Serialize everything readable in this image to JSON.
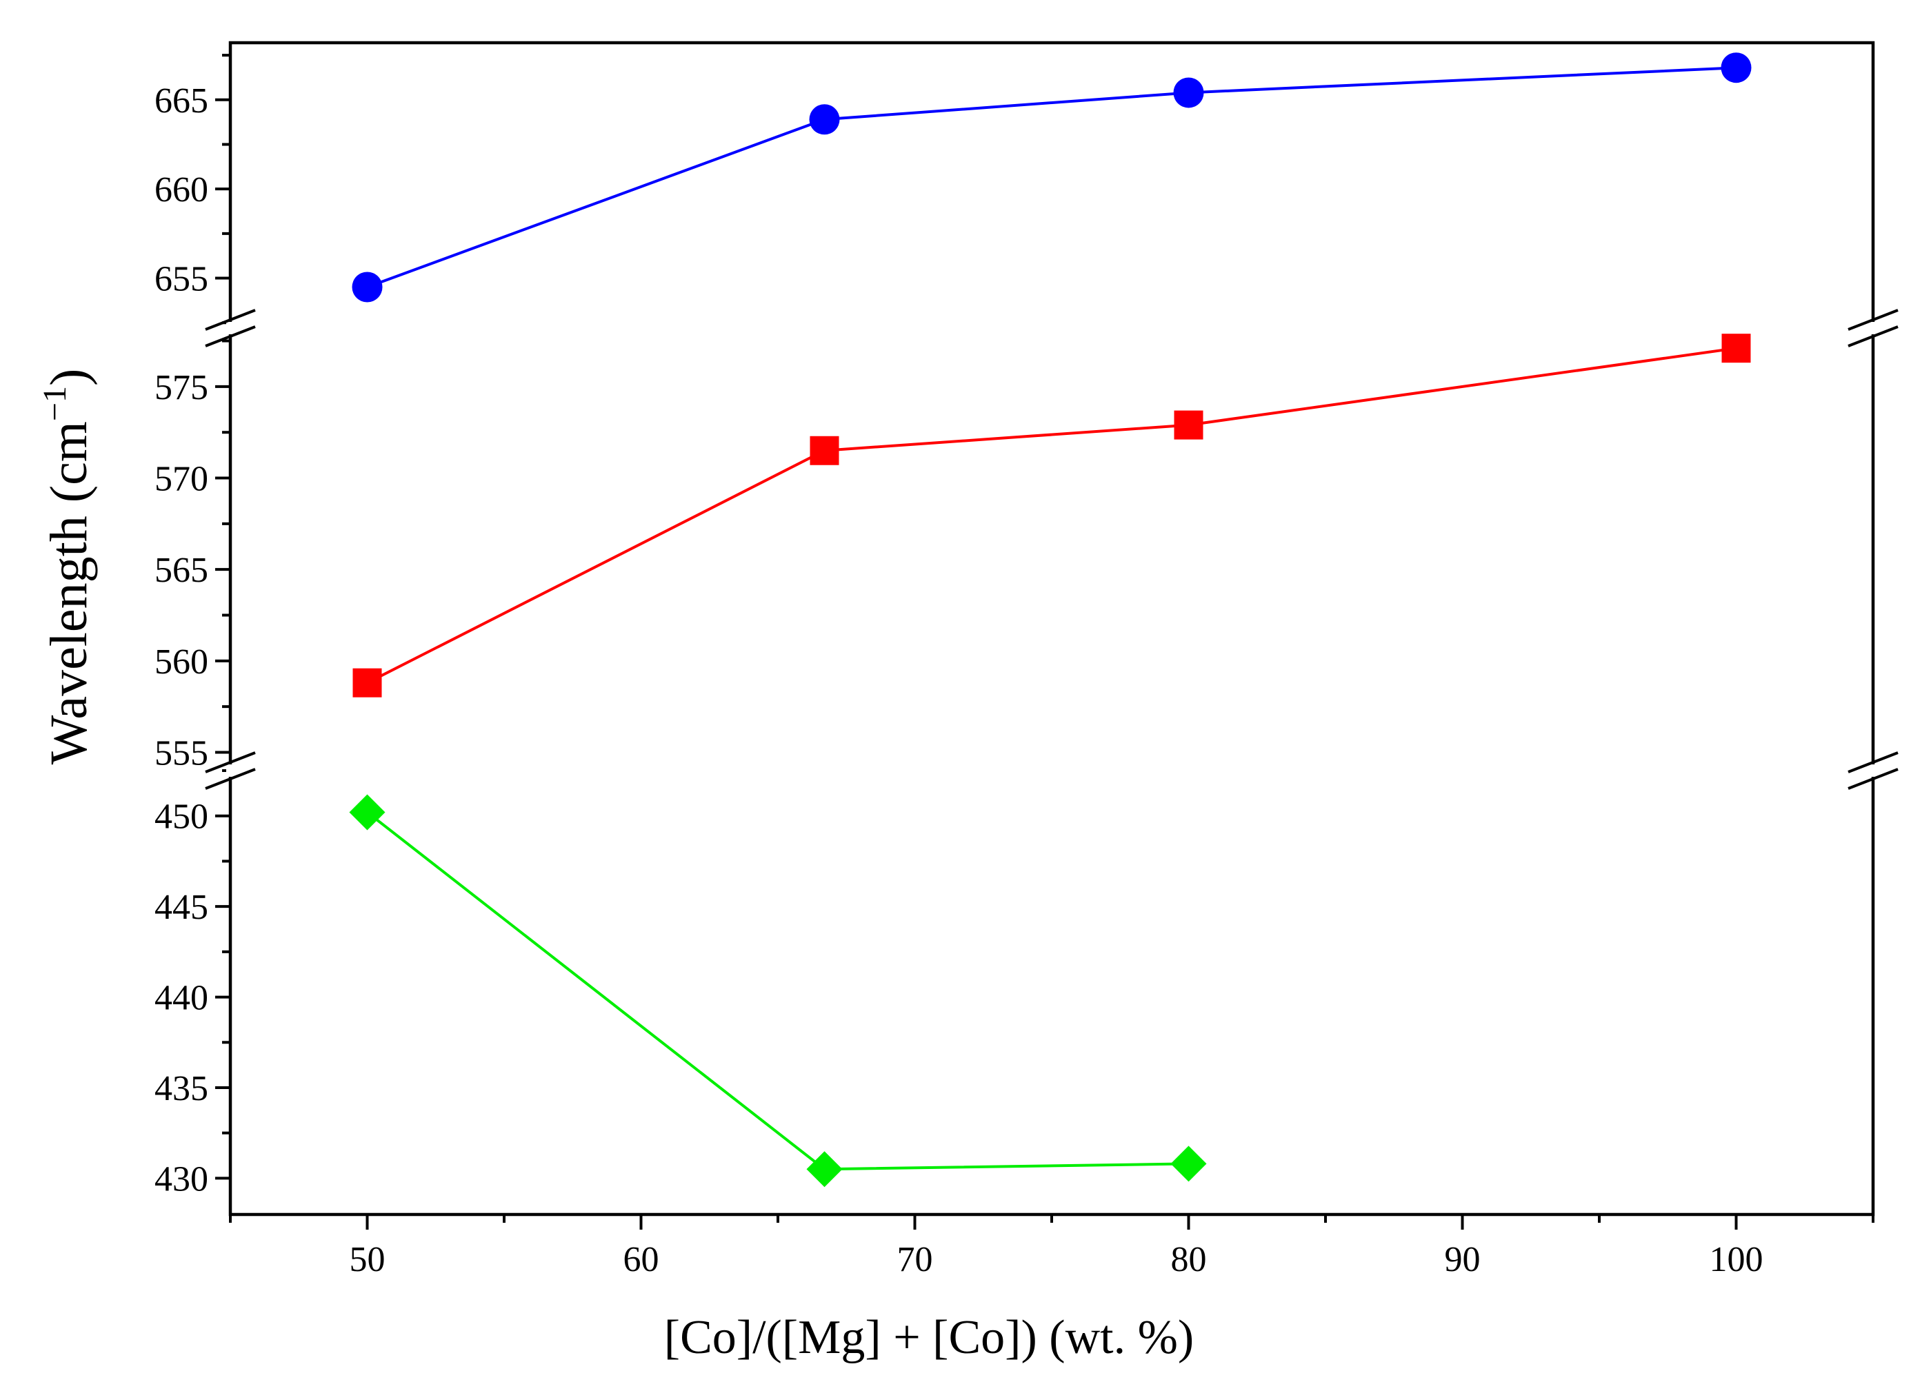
{
  "chart_data": {
    "type": "line",
    "title": "",
    "xlabel": "[Co]/([Mg] + [Co]) (wt. %)",
    "ylabel": "Wavelength (cm",
    "ylabel_superscript": "−1",
    "ylabel_close": ")",
    "xlim": [
      45,
      105
    ],
    "x_ticks": [
      50,
      60,
      70,
      80,
      90,
      100
    ],
    "x_tick_labels": [
      "50",
      "60",
      "70",
      "80",
      "90",
      "100"
    ],
    "broken_y_axis": true,
    "y_segments": [
      {
        "name": "upper",
        "ylim": [
          652.2,
          668.2
        ],
        "ticks": [
          655,
          660,
          665
        ],
        "tick_labels": [
          "655",
          "660",
          "665"
        ]
      },
      {
        "name": "middle",
        "ylim": [
          554,
          578.2
        ],
        "ticks": [
          555,
          560,
          565,
          570,
          575
        ],
        "tick_labels": [
          "555",
          "560",
          "565",
          "570",
          "575"
        ]
      },
      {
        "name": "lower",
        "ylim": [
          428,
          452.5
        ],
        "ticks": [
          430,
          435,
          440,
          445,
          450
        ],
        "tick_labels": [
          "430",
          "435",
          "440",
          "445",
          "450"
        ]
      }
    ],
    "series": [
      {
        "name": "upper-band",
        "segment": "upper",
        "marker": "circle",
        "color": "#0000ff",
        "x": [
          50,
          66.7,
          80,
          100
        ],
        "values": [
          654.5,
          663.9,
          665.4,
          666.8
        ]
      },
      {
        "name": "middle-band",
        "segment": "middle",
        "marker": "square",
        "color": "#ff0000",
        "x": [
          50,
          66.7,
          80,
          100
        ],
        "values": [
          558.8,
          571.5,
          572.9,
          577.1
        ]
      },
      {
        "name": "lower-band",
        "segment": "lower",
        "marker": "diamond",
        "color": "#00ee00",
        "x": [
          50,
          66.7,
          80
        ],
        "values": [
          450.2,
          430.5,
          430.8
        ]
      }
    ],
    "grid": false,
    "legend": "none"
  }
}
